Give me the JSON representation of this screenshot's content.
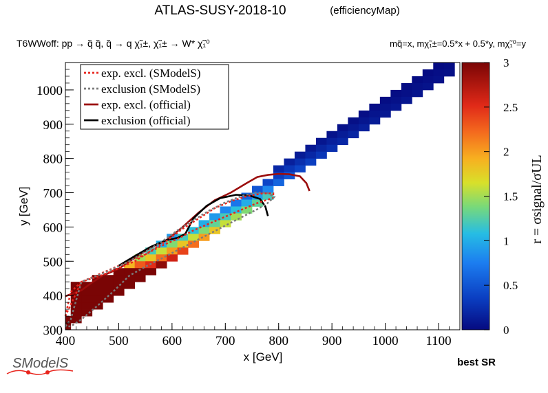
{
  "header": {
    "title": "ATLAS-SUSY-2018-10",
    "subtitle": "(efficiencyMap)",
    "process": "T6WWoff: pp → q̃ q̃, q̃ → q χ̃₁±, χ̃₁± → W* χ̃₁⁰",
    "mass_relation": "mq̃=x, mχ̃₁±=0.5*x + 0.5*y, mχ̃₁⁰=y"
  },
  "footer": {
    "logo_text": "SModelS",
    "note": "best SR"
  },
  "chart_data": {
    "type": "heatmap",
    "xlabel": "x [GeV]",
    "ylabel": "y [GeV]",
    "zlabel": "r = σsignal/σUL",
    "xlim": [
      400,
      1140
    ],
    "ylim": [
      300,
      1080
    ],
    "zlim": [
      0,
      3
    ],
    "x_ticks": [
      400,
      500,
      600,
      700,
      800,
      900,
      1000,
      1100
    ],
    "y_ticks": [
      300,
      400,
      500,
      600,
      700,
      800,
      900,
      1000
    ],
    "z_ticks": [
      "0",
      "0.5",
      "1",
      "1.5",
      "2",
      "2.5",
      "3"
    ],
    "cell_size": [
      20,
      20
    ],
    "legend_position": "top-left",
    "legend": [
      {
        "label": "exp. excl. (SModelS)",
        "color": "#e8241c",
        "style": "dotted"
      },
      {
        "label": "exclusion (SModelS)",
        "color": "#7a7a7a",
        "style": "dotted"
      },
      {
        "label": "exp. excl. (official)",
        "color": "#9b0d0d",
        "style": "solid"
      },
      {
        "label": "exclusion (official)",
        "color": "#000000",
        "style": "solid"
      }
    ],
    "cells": [
      [
        400,
        330,
        3.0
      ],
      [
        400,
        310,
        3.0
      ],
      [
        420,
        430,
        3.0
      ],
      [
        420,
        410,
        3.0
      ],
      [
        420,
        390,
        3.0
      ],
      [
        420,
        370,
        3.0
      ],
      [
        420,
        350,
        3.0
      ],
      [
        420,
        330,
        3.0
      ],
      [
        440,
        430,
        3.0
      ],
      [
        440,
        410,
        3.0
      ],
      [
        440,
        390,
        3.0
      ],
      [
        440,
        370,
        3.0
      ],
      [
        440,
        350,
        3.0
      ],
      [
        460,
        450,
        3.0
      ],
      [
        460,
        430,
        3.0
      ],
      [
        460,
        410,
        3.0
      ],
      [
        460,
        390,
        3.0
      ],
      [
        460,
        370,
        3.0
      ],
      [
        480,
        450,
        3.0
      ],
      [
        480,
        430,
        3.0
      ],
      [
        480,
        410,
        3.0
      ],
      [
        480,
        390,
        3.0
      ],
      [
        500,
        470,
        3.0
      ],
      [
        500,
        450,
        3.0
      ],
      [
        500,
        430,
        3.0
      ],
      [
        500,
        410,
        3.0
      ],
      [
        520,
        490,
        1.9
      ],
      [
        520,
        470,
        3.0
      ],
      [
        520,
        450,
        3.0
      ],
      [
        520,
        430,
        3.0
      ],
      [
        540,
        510,
        1.5
      ],
      [
        540,
        490,
        2.3
      ],
      [
        540,
        470,
        3.0
      ],
      [
        540,
        450,
        3.0
      ],
      [
        560,
        530,
        1.2
      ],
      [
        560,
        510,
        1.8
      ],
      [
        560,
        490,
        2.5
      ],
      [
        560,
        470,
        3.0
      ],
      [
        580,
        550,
        1.0
      ],
      [
        580,
        530,
        1.6
      ],
      [
        580,
        510,
        2.2
      ],
      [
        580,
        490,
        2.9
      ],
      [
        600,
        570,
        0.9
      ],
      [
        600,
        550,
        1.4
      ],
      [
        600,
        530,
        2.0
      ],
      [
        600,
        510,
        2.6
      ],
      [
        620,
        570,
        1.2
      ],
      [
        620,
        550,
        1.8
      ],
      [
        620,
        530,
        2.4
      ],
      [
        640,
        590,
        1.1
      ],
      [
        640,
        570,
        1.6
      ],
      [
        640,
        550,
        2.2
      ],
      [
        660,
        610,
        1.0
      ],
      [
        660,
        590,
        1.4
      ],
      [
        660,
        570,
        2.0
      ],
      [
        680,
        630,
        0.9
      ],
      [
        680,
        610,
        1.3
      ],
      [
        680,
        590,
        1.8
      ],
      [
        700,
        650,
        0.8
      ],
      [
        700,
        630,
        1.2
      ],
      [
        700,
        610,
        1.6
      ],
      [
        720,
        670,
        0.7
      ],
      [
        720,
        650,
        1.1
      ],
      [
        720,
        630,
        1.5
      ],
      [
        740,
        690,
        0.6
      ],
      [
        740,
        670,
        1.0
      ],
      [
        740,
        650,
        1.4
      ],
      [
        760,
        710,
        0.5
      ],
      [
        760,
        690,
        0.9
      ],
      [
        760,
        670,
        1.3
      ],
      [
        780,
        730,
        0.4
      ],
      [
        780,
        710,
        0.8
      ],
      [
        780,
        690,
        1.2
      ],
      [
        800,
        770,
        0.2
      ],
      [
        800,
        750,
        0.35
      ],
      [
        800,
        730,
        0.6
      ],
      [
        820,
        790,
        0.15
      ],
      [
        820,
        770,
        0.3
      ],
      [
        820,
        750,
        0.5
      ],
      [
        840,
        810,
        0.12
      ],
      [
        840,
        790,
        0.25
      ],
      [
        840,
        770,
        0.4
      ],
      [
        860,
        830,
        0.1
      ],
      [
        860,
        810,
        0.2
      ],
      [
        860,
        790,
        0.35
      ],
      [
        880,
        850,
        0.08
      ],
      [
        880,
        830,
        0.18
      ],
      [
        880,
        810,
        0.3
      ],
      [
        900,
        870,
        0.06
      ],
      [
        900,
        850,
        0.15
      ],
      [
        900,
        830,
        0.25
      ],
      [
        920,
        890,
        0.05
      ],
      [
        920,
        870,
        0.12
      ],
      [
        920,
        850,
        0.2
      ],
      [
        940,
        910,
        0.04
      ],
      [
        940,
        890,
        0.1
      ],
      [
        940,
        870,
        0.18
      ],
      [
        960,
        930,
        0.03
      ],
      [
        960,
        910,
        0.08
      ],
      [
        960,
        890,
        0.15
      ],
      [
        980,
        950,
        0.03
      ],
      [
        980,
        930,
        0.07
      ],
      [
        980,
        910,
        0.12
      ],
      [
        1000,
        970,
        0.02
      ],
      [
        1000,
        950,
        0.06
      ],
      [
        1000,
        930,
        0.1
      ],
      [
        1020,
        990,
        0.02
      ],
      [
        1020,
        970,
        0.05
      ],
      [
        1020,
        950,
        0.09
      ],
      [
        1040,
        1010,
        0.02
      ],
      [
        1040,
        990,
        0.04
      ],
      [
        1040,
        970,
        0.08
      ],
      [
        1060,
        1030,
        0.01
      ],
      [
        1060,
        1010,
        0.04
      ],
      [
        1060,
        990,
        0.07
      ],
      [
        1080,
        1050,
        0.01
      ],
      [
        1080,
        1030,
        0.03
      ],
      [
        1080,
        1010,
        0.06
      ],
      [
        1100,
        1070,
        0.01
      ],
      [
        1100,
        1050,
        0.03
      ],
      [
        1100,
        1030,
        0.05
      ],
      [
        1120,
        1070,
        0.02
      ],
      [
        1120,
        1050,
        0.04
      ]
    ],
    "series": [
      {
        "name": "exp. excl. (official)",
        "color": "#9b0d0d",
        "style": "solid",
        "x": [
          400,
          430,
          450,
          470,
          500,
          530,
          560,
          590,
          620,
          650,
          680,
          710,
          740,
          760,
          780,
          800,
          820,
          840,
          852,
          858
        ],
        "y": [
          398,
          415,
          438,
          458,
          478,
          510,
          540,
          562,
          600,
          642,
          678,
          700,
          728,
          746,
          752,
          755,
          754,
          748,
          728,
          705
        ]
      },
      {
        "name": "exclusion (official)",
        "color": "#000000",
        "style": "solid",
        "x": [
          500,
          530,
          560,
          590,
          610,
          625,
          640,
          665,
          690,
          720,
          745,
          765,
          775,
          780
        ],
        "y": [
          487,
          515,
          542,
          562,
          568,
          580,
          625,
          662,
          684,
          694,
          692,
          682,
          660,
          632
        ]
      },
      {
        "name": "exp. excl. (SModelS)",
        "color": "#e8241c",
        "style": "dotted",
        "x": [
          400,
          430,
          470,
          500,
          530,
          560,
          590,
          620,
          650,
          680,
          710,
          740,
          770,
          790,
          790,
          760,
          730,
          700,
          670,
          640,
          610,
          580,
          550,
          520,
          490,
          460,
          430,
          410,
          400
        ],
        "y": [
          340,
          440,
          460,
          480,
          500,
          530,
          560,
          595,
          625,
          655,
          675,
          690,
          698,
          698,
          685,
          670,
          650,
          630,
          610,
          590,
          565,
          545,
          520,
          500,
          480,
          460,
          440,
          410,
          340
        ]
      },
      {
        "name": "exclusion (SModelS)",
        "color": "#7a7a7a",
        "style": "dotted",
        "x": [
          400,
          410,
          430,
          460,
          490,
          520,
          550,
          580,
          610,
          640,
          670,
          700,
          730,
          755,
          778,
          792,
          778,
          760,
          730,
          700,
          670,
          640,
          610,
          580,
          550,
          520,
          490,
          460,
          430,
          410,
          400
        ],
        "y": [
          310,
          330,
          440,
          458,
          478,
          500,
          528,
          556,
          590,
          620,
          648,
          672,
          690,
          700,
          700,
          688,
          668,
          652,
          628,
          604,
          580,
          556,
          532,
          508,
          484,
          458,
          412,
          370,
          330,
          310,
          310
        ]
      }
    ]
  }
}
